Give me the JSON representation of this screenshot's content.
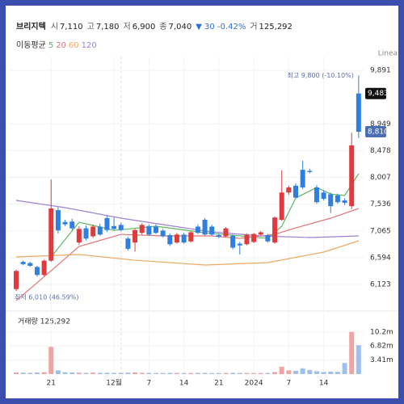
{
  "chart_data": {
    "type": "candlestick",
    "title": "브리지텍",
    "info": [
      {
        "label": "시",
        "value": "7,110"
      },
      {
        "label": "고",
        "value": "7,180"
      },
      {
        "label": "저",
        "value": "6,900"
      },
      {
        "label": "종",
        "value": "7,040"
      }
    ],
    "change": "▼ 30 -0.42%",
    "change_color": "#2f6fd6",
    "volume_info": {
      "label": "거",
      "value": "125,292"
    },
    "ma_label": "이동평균",
    "scale_label": "Linea",
    "up_color": "#e03a3e",
    "down_color": "#2f7fe0",
    "grid": true,
    "categories": [
      null,
      null,
      null,
      null,
      null,
      "21",
      null,
      null,
      null,
      null,
      null,
      null,
      null,
      null,
      "12월",
      null,
      null,
      null,
      null,
      "7",
      null,
      null,
      null,
      null,
      "14",
      null,
      null,
      null,
      null,
      "21",
      null,
      null,
      null,
      null,
      "2024",
      null,
      null,
      null,
      null,
      "7",
      null,
      null,
      null,
      null,
      "14",
      null,
      null,
      null,
      null,
      null
    ],
    "open": [
      6040,
      6520,
      6500,
      6430,
      6290,
      6540,
      7430,
      7220,
      7230,
      6860,
      7110,
      6970,
      7140,
      7290,
      7150,
      7170,
      6930,
      6860,
      7030,
      7150,
      7140,
      7070,
      6990,
      6860,
      7000,
      6880,
      7140,
      7260,
      7140,
      6990,
      6970,
      6980,
      6840,
      6830,
      6870,
      7000,
      6990,
      6860,
      7260,
      7740,
      7860,
      8140,
      8120,
      7830,
      7740,
      7710,
      7690,
      7600,
      7500,
      9483
    ],
    "high": [
      6380,
      6540,
      6520,
      6450,
      6560,
      7970,
      7480,
      7260,
      7280,
      7150,
      7160,
      7180,
      7190,
      7330,
      7300,
      7210,
      6960,
      7100,
      7200,
      7180,
      7180,
      7100,
      7020,
      7030,
      7030,
      7060,
      7180,
      7290,
      7170,
      7020,
      7130,
      7000,
      6870,
      7020,
      7030,
      7060,
      7010,
      7320,
      8130,
      7860,
      7900,
      8300,
      8160,
      7870,
      7780,
      7740,
      7720,
      7640,
      8790,
      9800
    ],
    "low": [
      6010,
      6460,
      6430,
      6260,
      6270,
      6520,
      7020,
      7150,
      7080,
      6820,
      6900,
      6940,
      6980,
      7050,
      7080,
      7060,
      6720,
      6700,
      7000,
      6980,
      7010,
      6950,
      6800,
      6840,
      6840,
      6860,
      7010,
      6980,
      6980,
      6940,
      6950,
      6740,
      6650,
      6810,
      6850,
      6980,
      6860,
      6840,
      7240,
      7700,
      7640,
      7800,
      8080,
      7540,
      7600,
      7380,
      7540,
      7520,
      7450,
      8700
    ],
    "close": [
      6360,
      6480,
      6450,
      6290,
      6540,
      7460,
      7075,
      7180,
      7110,
      7100,
      6930,
      7140,
      7000,
      7080,
      7100,
      7080,
      6750,
      7080,
      7170,
      7000,
      7030,
      6970,
      6830,
      7000,
      6860,
      7040,
      7030,
      7000,
      7000,
      6960,
      7110,
      6770,
      6810,
      7000,
      7010,
      7040,
      6880,
      7300,
      7740,
      7830,
      7650,
      7830,
      8100,
      7570,
      7630,
      7500,
      7570,
      7560,
      8570,
      8810
    ],
    "ylim": [
      5796,
      10133
    ],
    "yticks": [
      {
        "value": 9891,
        "label": "9,891"
      },
      {
        "value": 8949,
        "label": "8,949"
      },
      {
        "value": 8478,
        "label": "8,478"
      },
      {
        "value": 8007,
        "label": "8,007"
      },
      {
        "value": 7536,
        "label": "7,536"
      },
      {
        "value": 7065,
        "label": "7,065"
      },
      {
        "value": 6594,
        "label": "6,594"
      },
      {
        "value": 6123,
        "label": "6,123"
      }
    ],
    "price_tags": [
      {
        "value": 9483,
        "label": "9,483",
        "color": "#111111"
      },
      {
        "value": 8810,
        "label": "8,810",
        "color": "#4a6fb5"
      }
    ],
    "max_annotation": "최고 9,800 (-10.10%)",
    "min_annotation": "최저 6,010 (46.59%)",
    "moving_averages": [
      {
        "name": "5",
        "color": "#5cb85c",
        "x": [
          5,
          9,
          14,
          20,
          27,
          36,
          38,
          40,
          43,
          45,
          47,
          49
        ],
        "values": [
          6606,
          7218,
          7075,
          7147,
          7033,
          6933,
          7147,
          7644,
          7829,
          7715,
          7687,
          8071
        ]
      },
      {
        "name": "20",
        "color": "#e57373",
        "x": [
          0,
          5,
          9,
          15,
          21,
          28,
          32,
          37,
          40,
          45,
          49
        ],
        "values": [
          5838,
          6364,
          6791,
          7004,
          6976,
          6976,
          6933,
          7004,
          7118,
          7289,
          7459
        ]
      },
      {
        "name": "60",
        "color": "#f0a860",
        "x": [
          0,
          9,
          17,
          27,
          36,
          44,
          49
        ],
        "values": [
          6606,
          6649,
          6549,
          6464,
          6507,
          6692,
          6891
        ]
      },
      {
        "name": "120",
        "color": "#9c7fd6",
        "x": [
          0,
          7,
          15,
          21,
          28,
          35,
          42,
          49
        ],
        "values": [
          7602,
          7474,
          7289,
          7175,
          7047,
          6976,
          6948,
          6976
        ]
      }
    ],
    "volume": {
      "title": "거래량 125,292",
      "up_color": "#f0a4a4",
      "down_color": "#9fc0ef",
      "values": [
        400000,
        350000,
        300000,
        380000,
        450000,
        6600000,
        900000,
        450000,
        400000,
        350000,
        300000,
        350000,
        300000,
        320000,
        280000,
        300000,
        350000,
        400000,
        300000,
        280000,
        260000,
        250000,
        300000,
        280000,
        250000,
        260000,
        280000,
        300000,
        250000,
        240000,
        260000,
        300000,
        280000,
        260000,
        250000,
        240000,
        260000,
        500000,
        1800000,
        900000,
        800000,
        1400000,
        1000000,
        700000,
        500000,
        600000,
        550000,
        2700000,
        10200000,
        7000000
      ],
      "ylim": [
        0,
        13300000
      ],
      "yticks": [
        {
          "value": 10200000,
          "label": "10.2m"
        },
        {
          "value": 6820000,
          "label": "6.82m"
        },
        {
          "value": 3410000,
          "label": "3.41m"
        }
      ]
    }
  }
}
